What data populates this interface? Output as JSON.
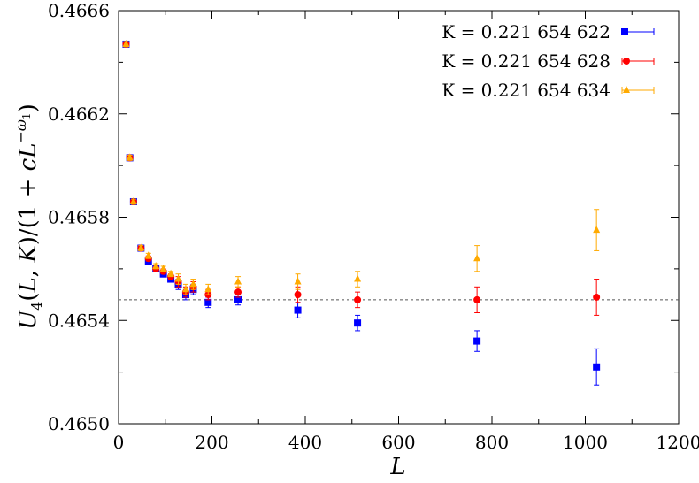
{
  "chart_data": {
    "type": "scatter",
    "xlabel": "L",
    "ylabel": "U_4(L, K)/(1 + cL^{-ω_1})",
    "xlim": [
      0,
      1200
    ],
    "ylim": [
      0.465,
      0.4666
    ],
    "x_ticks": [
      "0",
      "200",
      "400",
      "600",
      "800",
      "1000",
      "1200"
    ],
    "y_ticks": [
      "0.4650",
      "0.4654",
      "0.4658",
      "0.4662",
      "0.4666"
    ],
    "y_tick_values": [
      0.465,
      0.4654,
      0.4658,
      0.4662,
      0.4666
    ],
    "x_tick_values": [
      0,
      200,
      400,
      600,
      800,
      1000,
      1200
    ],
    "reference_line": 0.46548,
    "legend_position": "top-right",
    "series": [
      {
        "name": "K = 0.221 654 622",
        "color": "#0000ff",
        "marker": "square",
        "x": [
          16,
          24,
          32,
          48,
          64,
          80,
          96,
          112,
          128,
          144,
          160,
          192,
          256,
          384,
          512,
          768,
          1024
        ],
        "y": [
          0.46647,
          0.46603,
          0.46586,
          0.46568,
          0.46563,
          0.4656,
          0.46558,
          0.46556,
          0.46554,
          0.4655,
          0.46552,
          0.46547,
          0.46548,
          0.46544,
          0.46539,
          0.46532,
          0.46522
        ],
        "err": [
          1e-05,
          1e-05,
          1e-05,
          1e-05,
          1e-05,
          1e-05,
          1e-05,
          1e-05,
          2e-05,
          2e-05,
          2e-05,
          2e-05,
          2e-05,
          3e-05,
          3e-05,
          4e-05,
          7e-05
        ]
      },
      {
        "name": "K = 0.221 654 628",
        "color": "#ff0000",
        "marker": "circle",
        "x": [
          16,
          24,
          32,
          48,
          64,
          80,
          96,
          112,
          128,
          144,
          160,
          192,
          256,
          384,
          512,
          768,
          1024
        ],
        "y": [
          0.46647,
          0.46603,
          0.46586,
          0.46568,
          0.46564,
          0.4656,
          0.46559,
          0.46557,
          0.46555,
          0.46551,
          0.46553,
          0.4655,
          0.46551,
          0.4655,
          0.46548,
          0.46548,
          0.46549
        ],
        "err": [
          1e-05,
          1e-05,
          1e-05,
          1e-05,
          1e-05,
          1e-05,
          1e-05,
          1e-05,
          2e-05,
          2e-05,
          2e-05,
          2e-05,
          2e-05,
          3e-05,
          3e-05,
          5e-05,
          7e-05
        ]
      },
      {
        "name": "K = 0.221 654 634",
        "color": "#ffaa00",
        "marker": "triangle",
        "x": [
          16,
          24,
          32,
          48,
          64,
          80,
          96,
          112,
          128,
          144,
          160,
          192,
          256,
          384,
          512,
          768,
          1024
        ],
        "y": [
          0.46647,
          0.46603,
          0.46586,
          0.46568,
          0.46565,
          0.46561,
          0.4656,
          0.46558,
          0.46556,
          0.46552,
          0.46554,
          0.46552,
          0.46555,
          0.46555,
          0.46556,
          0.46564,
          0.46575
        ],
        "err": [
          1e-05,
          1e-05,
          1e-05,
          1e-05,
          1e-05,
          1e-05,
          1e-05,
          1e-05,
          2e-05,
          2e-05,
          2e-05,
          2e-05,
          2e-05,
          3e-05,
          3e-05,
          5e-05,
          8e-05
        ]
      }
    ]
  }
}
